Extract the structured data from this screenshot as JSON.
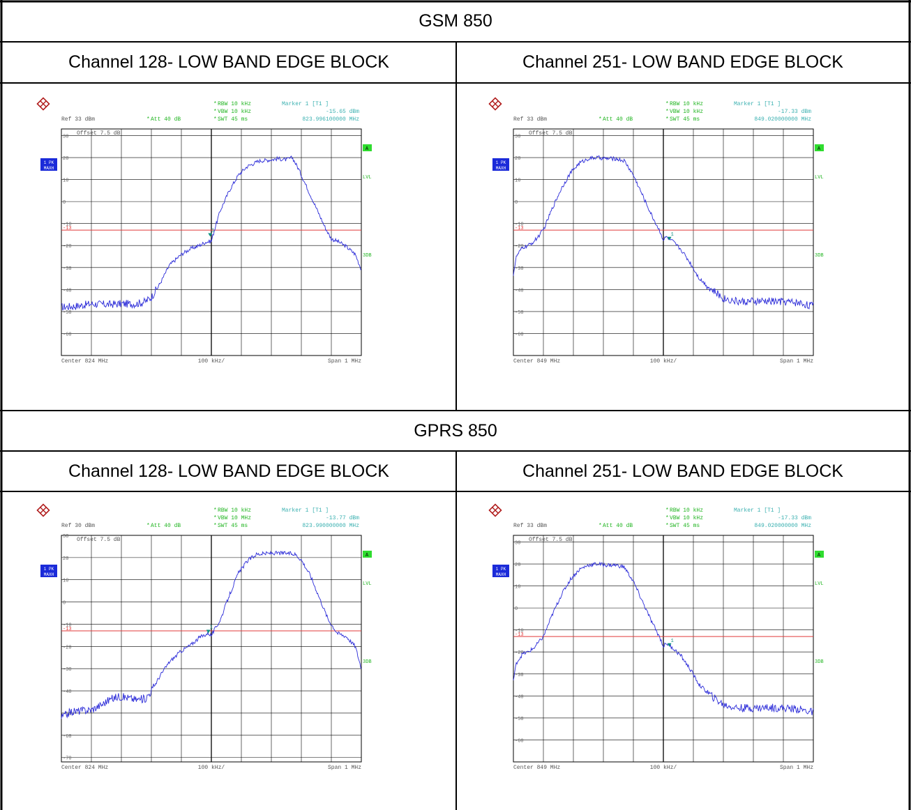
{
  "sections": [
    {
      "header": "GSM 850",
      "columns": [
        "Channel 128- LOW BAND EDGE BLOCK",
        "Channel 251- LOW BAND EDGE BLOCK"
      ]
    },
    {
      "header": "GPRS 850",
      "columns": [
        "Channel 128- LOW BAND EDGE BLOCK",
        "Channel 251- LOW BAND EDGE BLOCK"
      ]
    }
  ],
  "colors": {
    "trace": "#2a2ad8",
    "limit_line": "#e03a3a",
    "grid": "#000000",
    "info_green": "#22b522",
    "info_cyan": "#3ab0b0",
    "label_blue": "#1b2bd9",
    "marker": "#0d8f7f"
  },
  "chart_data": [
    {
      "type": "line",
      "panel": "GSM 850 - Channel 128",
      "rbw": "RBW 10 kHz",
      "vbw": "VBW 10 kHz",
      "swt": "SWT 45 ms",
      "att": "Att  40 dB",
      "ref": "Ref  33 dBm",
      "offset": "Offset  7.5 dB",
      "marker_title": "Marker 1 [T1 ]",
      "marker_level": "-15.65 dBm",
      "marker_freq": "823.996100000 MHz",
      "trace_label": [
        "1 PK",
        "MAXH"
      ],
      "side_labels": [
        "A",
        "LVL",
        "3DB"
      ],
      "center": "Center  824 MHz",
      "per_div": "100 kHz/",
      "span": "Span  1 MHz",
      "y_ticks": [
        "30",
        "20",
        "10",
        "0",
        "-10",
        "-20",
        "-30",
        "-40",
        "-50",
        "-60"
      ],
      "ylim": [
        -70,
        33
      ],
      "xlim": [
        823.5,
        824.5
      ],
      "limit_value": -13,
      "limit_label": "-13",
      "marker_x": 823.9961,
      "marker_y": -15.65,
      "marker_num": "1",
      "series": [
        {
          "x": [
            823.5,
            823.55,
            823.6,
            823.65,
            823.7,
            823.75,
            823.78,
            823.8,
            823.83,
            823.86,
            823.9,
            823.93,
            823.96,
            823.98,
            824.0,
            824.01,
            824.03,
            824.06,
            824.09,
            824.12,
            824.16,
            824.2,
            824.22,
            824.25,
            824.27,
            824.29,
            824.32,
            824.35,
            824.38,
            824.4,
            824.42,
            824.45,
            824.48,
            824.5
          ],
          "values": [
            -48,
            -47.5,
            -46.5,
            -46.8,
            -46.5,
            -46.5,
            -45.5,
            -43.5,
            -37,
            -29,
            -24,
            -21.5,
            -20,
            -18.5,
            -18,
            -13,
            -4,
            5,
            12,
            16,
            18.5,
            19,
            19.5,
            19,
            20,
            15,
            6,
            -3,
            -12,
            -17,
            -18,
            -20.5,
            -24,
            -31
          ]
        }
      ]
    },
    {
      "type": "line",
      "panel": "GSM 850 - Channel 251",
      "rbw": "RBW 10 kHz",
      "vbw": "VBW 10 kHz",
      "swt": "SWT 45 ms",
      "att": "Att  40 dB",
      "ref": "Ref  33 dBm",
      "offset": "Offset  7.5 dB",
      "marker_title": "Marker 1 [T1 ]",
      "marker_level": "-17.33 dBm",
      "marker_freq": "849.020000000 MHz",
      "trace_label": [
        "1 PK",
        "MAXH"
      ],
      "side_labels": [
        "A",
        "LVL",
        "3DB"
      ],
      "center": "Center  849 MHz",
      "per_div": "100 kHz/",
      "span": "Span  1 MHz",
      "y_ticks": [
        "30",
        "20",
        "10",
        "0",
        "-10",
        "-20",
        "-30",
        "-40",
        "-50",
        "-60"
      ],
      "ylim": [
        -70,
        33
      ],
      "xlim": [
        848.5,
        849.5
      ],
      "limit_value": -13,
      "limit_label": "-13",
      "marker_x": 849.02,
      "marker_y": -17.33,
      "marker_num": "1",
      "series": [
        {
          "x": [
            848.5,
            848.51,
            848.53,
            848.55,
            848.57,
            848.6,
            848.63,
            848.66,
            848.69,
            848.72,
            848.75,
            848.78,
            848.81,
            848.84,
            848.87,
            848.9,
            848.93,
            848.96,
            848.99,
            849.0,
            849.01,
            849.03,
            849.06,
            849.09,
            849.12,
            849.16,
            849.2,
            849.25,
            849.3,
            849.35,
            849.4,
            849.45,
            849.5
          ],
          "values": [
            -33,
            -25,
            -21,
            -20,
            -18,
            -13,
            -3,
            6,
            13,
            17.5,
            19.5,
            20,
            19.5,
            19.5,
            18.5,
            12,
            3,
            -6,
            -14,
            -17.5,
            -16,
            -18,
            -22,
            -28,
            -35,
            -40,
            -44,
            -45.5,
            -45.5,
            -45.3,
            -45.5,
            -46,
            -47.5
          ]
        }
      ]
    },
    {
      "type": "line",
      "panel": "GPRS 850 - Channel 128",
      "rbw": "RBW 10 kHz",
      "vbw": "VBW 10 MHz",
      "swt": "SWT 45 ms",
      "att": "Att  40 dB",
      "ref": "Ref  30 dBm",
      "offset": "Offset  7.5 dB",
      "marker_title": "Marker 1 [T1 ]",
      "marker_level": "-13.77 dBm",
      "marker_freq": "823.990000000 MHz",
      "trace_label": [
        "1 PK",
        "MAXH"
      ],
      "side_labels": [
        "A",
        "LVL",
        "3DB"
      ],
      "center": "Center  824 MHz",
      "per_div": "100 kHz/",
      "span": "Span  1 MHz",
      "y_ticks": [
        "30",
        "20",
        "10",
        "0",
        "-10",
        "-20",
        "-30",
        "-40",
        "-50",
        "-60",
        "-70"
      ],
      "ylim": [
        -72,
        30
      ],
      "xlim": [
        823.5,
        824.5
      ],
      "limit_value": -13,
      "limit_label": "-13",
      "marker_x": 823.99,
      "marker_y": -13.77,
      "marker_num": "1",
      "series": [
        {
          "x": [
            823.5,
            823.53,
            823.56,
            823.6,
            823.63,
            823.66,
            823.69,
            823.72,
            823.75,
            823.78,
            823.8,
            823.83,
            823.86,
            823.9,
            823.93,
            823.96,
            823.99,
            824.0,
            824.03,
            824.06,
            824.09,
            824.12,
            824.15,
            824.2,
            824.25,
            824.28,
            824.3,
            824.33,
            824.36,
            824.39,
            824.42,
            824.45,
            824.48,
            824.5
          ],
          "values": [
            -52,
            -49.5,
            -49,
            -48.5,
            -46.5,
            -44,
            -42.5,
            -43,
            -44,
            -43.5,
            -40,
            -33,
            -27,
            -22,
            -19.5,
            -16,
            -14,
            -15,
            -8,
            3,
            13,
            18.5,
            21.5,
            22,
            22,
            21.5,
            19,
            12,
            2,
            -8,
            -14,
            -15.5,
            -20,
            -30
          ]
        }
      ]
    },
    {
      "type": "line",
      "panel": "GPRS 850 - Channel 251",
      "rbw": "RBW 10 kHz",
      "vbw": "VBW 10 kHz",
      "swt": "SWT 45 ms",
      "att": "Att  40 dB",
      "ref": "Ref  33 dBm",
      "offset": "Offset  7.5 dB",
      "marker_title": "Marker 1 [T1 ]",
      "marker_level": "-17.33 dBm",
      "marker_freq": "849.020000000 MHz",
      "trace_label": [
        "1 PK",
        "MAXH"
      ],
      "side_labels": [
        "A",
        "LVL",
        "3DB"
      ],
      "center": "Center  849 MHz",
      "per_div": "100 kHz/",
      "span": "Span  1 MHz",
      "y_ticks": [
        "30",
        "20",
        "10",
        "0",
        "-10",
        "-20",
        "-30",
        "-40",
        "-50",
        "-60"
      ],
      "ylim": [
        -70,
        33
      ],
      "xlim": [
        848.5,
        849.5
      ],
      "limit_value": -13,
      "limit_label": "-13",
      "marker_x": 849.02,
      "marker_y": -17.33,
      "marker_num": "1",
      "series": [
        {
          "x": [
            848.5,
            848.51,
            848.53,
            848.55,
            848.57,
            848.6,
            848.63,
            848.66,
            848.69,
            848.72,
            848.75,
            848.78,
            848.81,
            848.84,
            848.87,
            848.9,
            848.93,
            848.96,
            848.99,
            849.0,
            849.01,
            849.03,
            849.06,
            849.09,
            849.12,
            849.16,
            849.2,
            849.25,
            849.3,
            849.35,
            849.4,
            849.45,
            849.5
          ],
          "values": [
            -33,
            -25,
            -21,
            -20,
            -18,
            -13,
            -3,
            6,
            13,
            17.5,
            19.5,
            20,
            19.5,
            19.5,
            18.5,
            12,
            3,
            -6,
            -14,
            -17.5,
            -16,
            -18,
            -22,
            -28,
            -35,
            -40,
            -44,
            -45.5,
            -45.5,
            -45.3,
            -45.5,
            -46,
            -47.5
          ]
        }
      ]
    }
  ]
}
